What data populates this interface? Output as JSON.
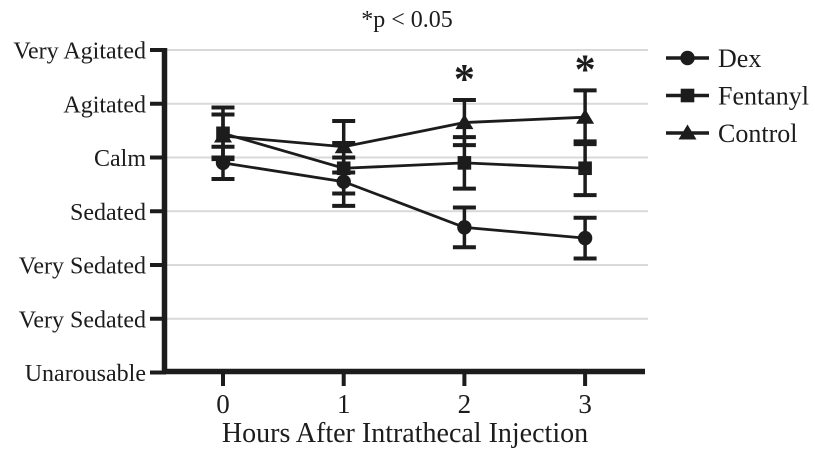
{
  "chart_data": {
    "type": "line",
    "title": "*p < 0.05",
    "xlabel": "Hours After Intrathecal Injection",
    "ylabel": "",
    "x": [
      0,
      1,
      2,
      3
    ],
    "x_tick_labels": [
      "0",
      "1",
      "2",
      "3"
    ],
    "y_categories": [
      {
        "value": 7,
        "label": "Very Agitated"
      },
      {
        "value": 6,
        "label": "Agitated"
      },
      {
        "value": 5,
        "label": "Calm"
      },
      {
        "value": 4,
        "label": "Sedated"
      },
      {
        "value": 3,
        "label": "Very Sedated"
      },
      {
        "value": 2,
        "label": "Very Sedated"
      },
      {
        "value": 1,
        "label": "Unarousable"
      }
    ],
    "ylim": [
      1,
      7
    ],
    "grid": true,
    "series": [
      {
        "name": "Control",
        "marker": "triangle",
        "values": [
          5.4,
          5.2,
          5.65,
          5.75
        ],
        "errors": [
          0.4,
          0.48,
          0.42,
          0.5
        ]
      },
      {
        "name": "Fentanyl",
        "marker": "square",
        "values": [
          5.45,
          4.8,
          4.9,
          4.8
        ],
        "errors": [
          0.48,
          0.47,
          0.48,
          0.5
        ]
      },
      {
        "name": "Dex",
        "marker": "circle",
        "values": [
          4.9,
          4.55,
          3.7,
          3.5
        ],
        "errors": [
          0.3,
          0.45,
          0.37,
          0.38
        ]
      }
    ],
    "legend": {
      "position": "right",
      "entries": [
        {
          "label": "Dex",
          "marker": "circle"
        },
        {
          "label": "Fentanyl",
          "marker": "square"
        },
        {
          "label": "Control",
          "marker": "triangle"
        }
      ]
    },
    "annotations": [
      {
        "type": "significance",
        "symbol": "*",
        "x": 2,
        "series": "Control"
      },
      {
        "type": "significance",
        "symbol": "*",
        "x": 3,
        "series": "Control"
      }
    ],
    "colors": {
      "ink": "#1c1c1c",
      "grid": "#d9d9d9",
      "background": "#ffffff"
    }
  }
}
